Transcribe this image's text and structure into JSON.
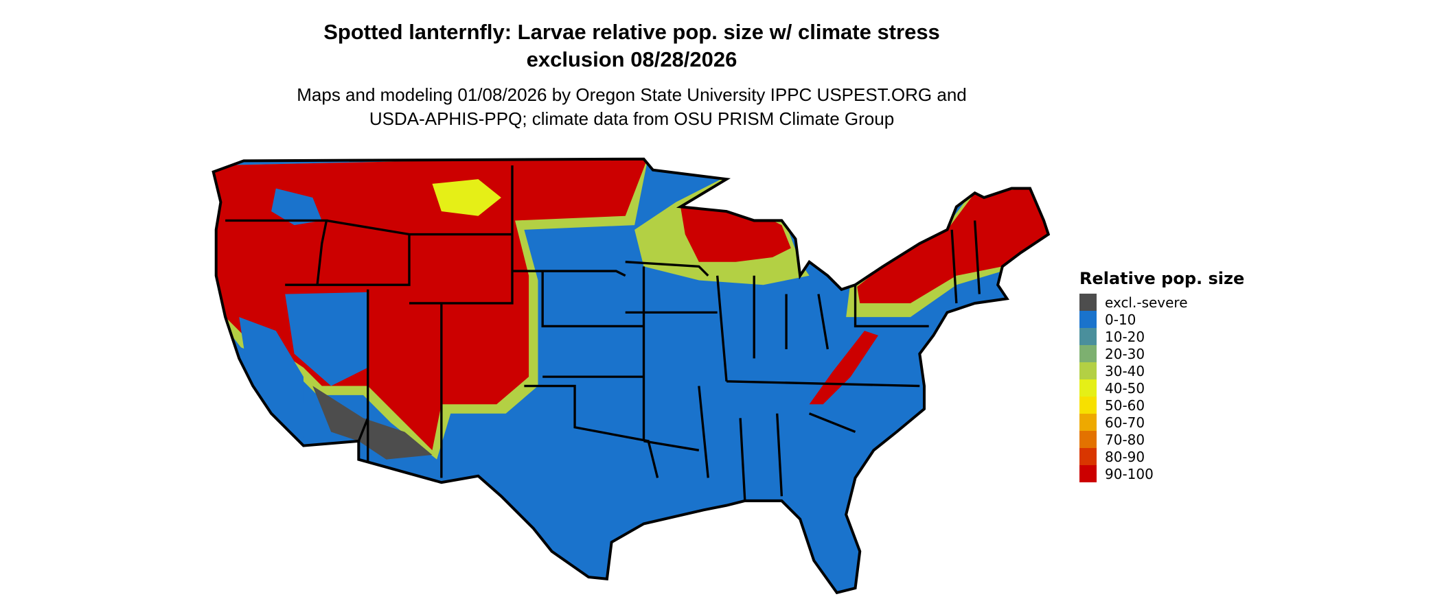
{
  "title": {
    "line1": "Spotted lanternfly: Larvae relative pop. size w/ climate stress",
    "line2": "exclusion 08/28/2026"
  },
  "subtitle": {
    "line1": "Maps and modeling 01/08/2026 by Oregon State University IPPC USPEST.ORG and",
    "line2": "USDA-APHIS-PPQ; climate data from OSU PRISM Climate Group"
  },
  "legend": {
    "title": "Relative pop. size",
    "items": [
      {
        "label": "excl.-severe",
        "color": "#4d4d4d"
      },
      {
        "label": "0-10",
        "color": "#1a73cc"
      },
      {
        "label": "10-20",
        "color": "#4a8f9c"
      },
      {
        "label": "20-30",
        "color": "#7db070"
      },
      {
        "label": "30-40",
        "color": "#b3d044"
      },
      {
        "label": "40-50",
        "color": "#e5ef17"
      },
      {
        "label": "50-60",
        "color": "#f7e000"
      },
      {
        "label": "60-70",
        "color": "#eea900"
      },
      {
        "label": "70-80",
        "color": "#e37200"
      },
      {
        "label": "80-90",
        "color": "#d93600"
      },
      {
        "label": "90-100",
        "color": "#cc0000"
      }
    ]
  }
}
